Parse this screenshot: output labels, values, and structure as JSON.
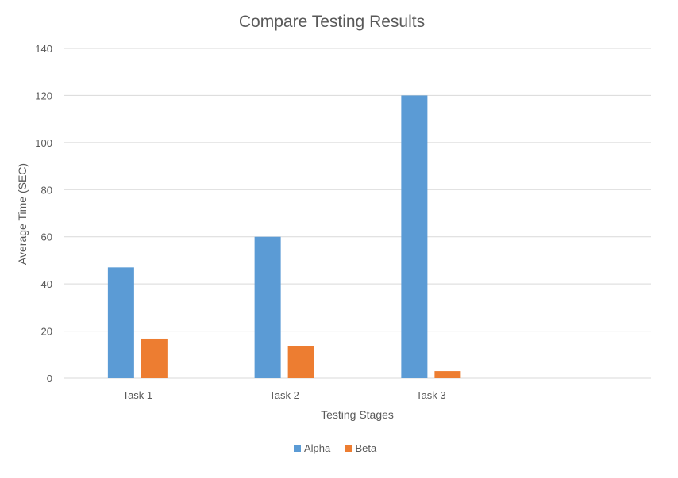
{
  "chart_data": {
    "type": "bar",
    "title": "Compare Testing Results",
    "xlabel": "Testing Stages",
    "ylabel": "Average Time (SEC)",
    "categories": [
      "Task 1",
      "Task 2",
      "Task 3",
      ""
    ],
    "series": [
      {
        "name": "Alpha",
        "color": "#5b9bd5",
        "values": [
          47,
          60,
          120,
          null
        ]
      },
      {
        "name": "Beta",
        "color": "#ed7d31",
        "values": [
          16.5,
          13.5,
          3,
          null
        ]
      }
    ],
    "ylim": [
      0,
      140
    ],
    "yticks": [
      0,
      20,
      40,
      60,
      80,
      100,
      120,
      140
    ],
    "grid": true,
    "legend_position": "bottom"
  }
}
